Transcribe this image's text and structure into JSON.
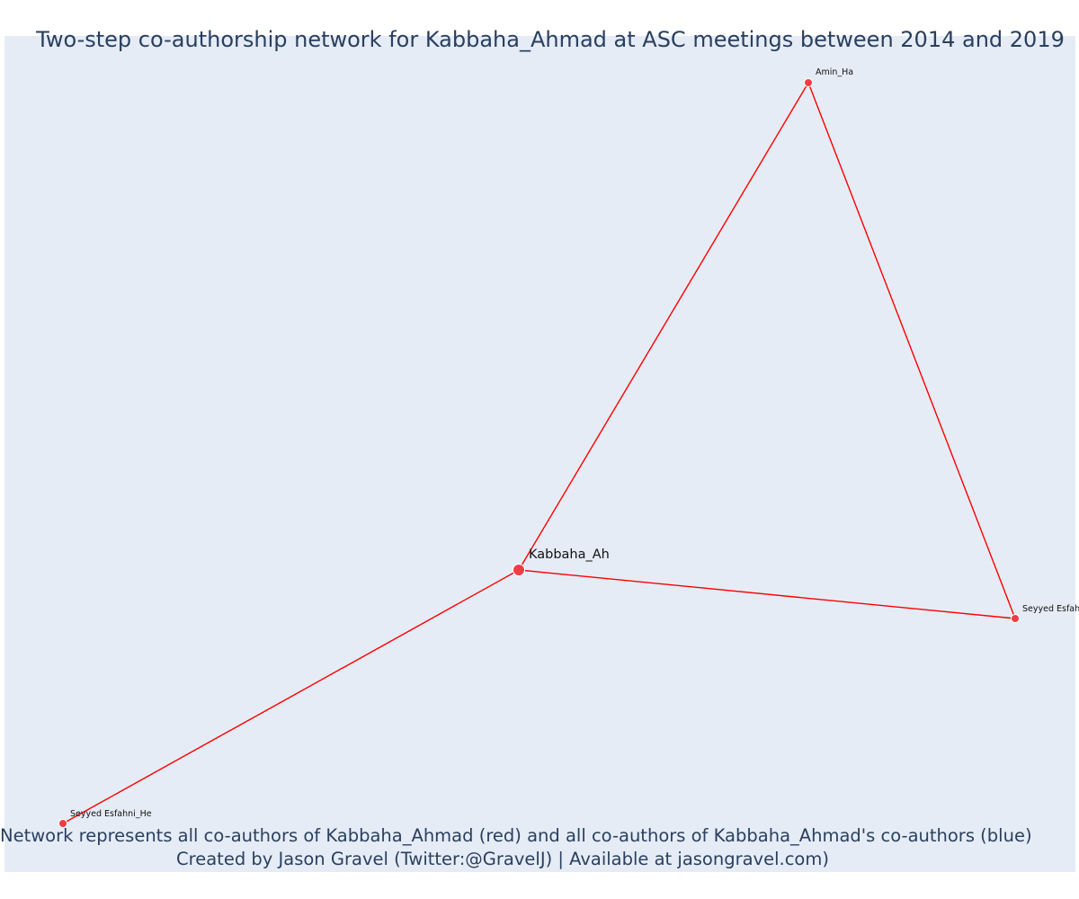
{
  "title": "Two-step co-authorship network for Kabbaha_Ahmad at ASC meetings between 2014 and 2019",
  "caption_line1": "Network represents all co-authors of Kabbaha_Ahmad (red) and all co-authors of Kabbaha_Ahmad's co-authors (blue)",
  "caption_line2": "Created by Jason Gravel (Twitter:@GravelJ) | Available at jasongravel.com)",
  "colors": {
    "plot_background": "#e5ecf6",
    "edge": "#ff0000",
    "node": "#f23c45",
    "node_outline": "#ffffff",
    "title_text": "#2a3f5f",
    "label_text": "#111111"
  },
  "chart_data": {
    "type": "network",
    "nodes": [
      {
        "id": "kabbaha",
        "label": "Kabbaha_Ah",
        "group": "co-author (red)",
        "focal": true
      },
      {
        "id": "amin",
        "label": "Amin_Ha",
        "group": "co-author (red)",
        "focal": false
      },
      {
        "id": "seyyed_esfah",
        "label": "Seyyed Esfah",
        "group": "co-author (red)",
        "focal": false
      },
      {
        "id": "seyyed_esfahni",
        "label": "Seyyed Esfahni_He",
        "group": "co-author (red)",
        "focal": false
      }
    ],
    "edges": [
      {
        "source": "kabbaha",
        "target": "amin"
      },
      {
        "source": "kabbaha",
        "target": "seyyed_esfah"
      },
      {
        "source": "kabbaha",
        "target": "seyyed_esfahni"
      },
      {
        "source": "amin",
        "target": "seyyed_esfah"
      }
    ]
  }
}
